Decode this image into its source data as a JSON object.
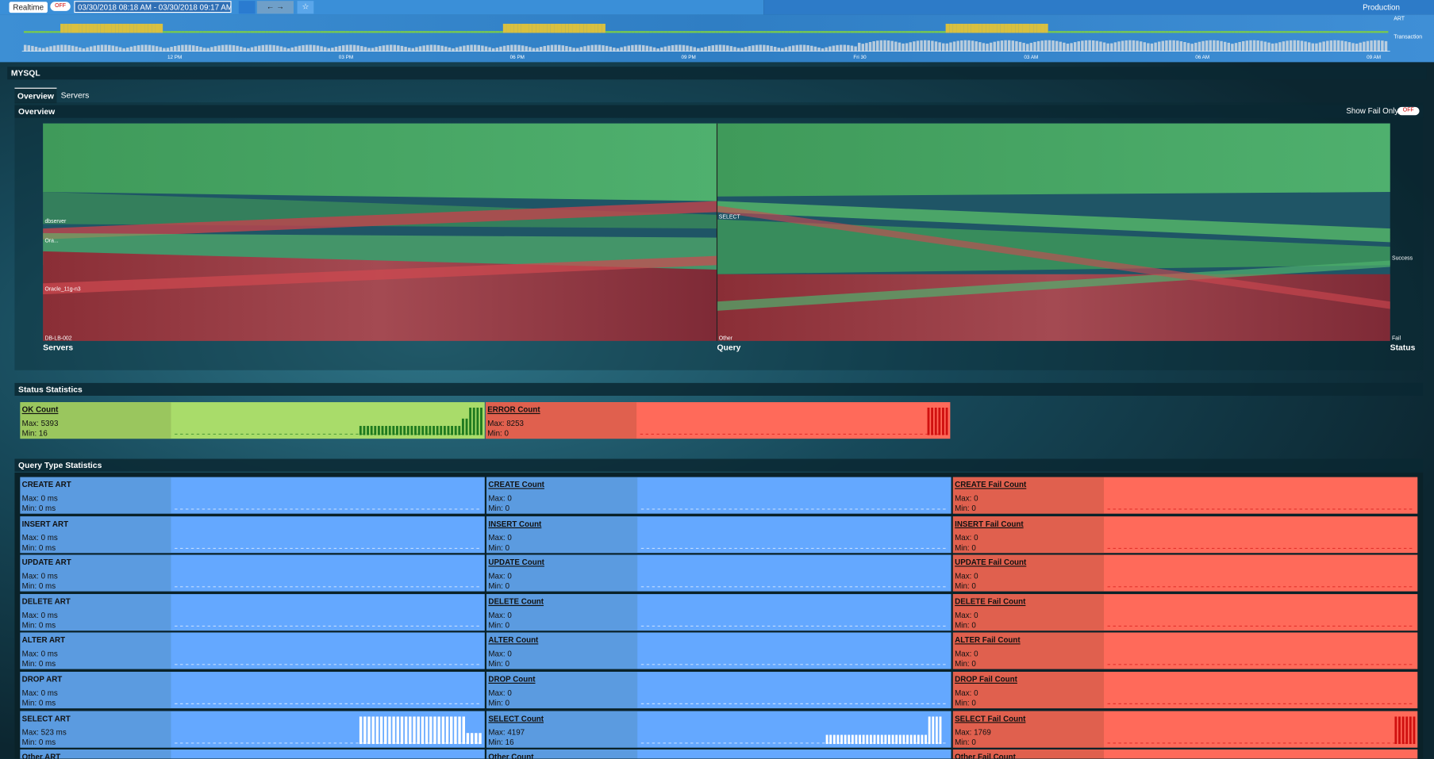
{
  "toolbar": {
    "realtime": "Realtime",
    "toggle": "OFF",
    "range": "03/30/2018 08:18 AM - 03/30/2018 09:17 AM",
    "environment": "Production"
  },
  "timeline": {
    "legend": [
      "ART",
      "Transaction"
    ],
    "labels": [
      "12 PM",
      "03 PM",
      "06 PM",
      "09 PM",
      "Fri 30",
      "03 AM",
      "06 AM",
      "09 AM"
    ]
  },
  "section": "MYSQL",
  "tabs": [
    "Overview",
    "Servers"
  ],
  "overview": {
    "title": "Overview",
    "show_fail_only": "Show Fail Only",
    "toggle": "OFF",
    "axes": [
      "Servers",
      "Query",
      "Status"
    ],
    "servers": [
      "dbserver",
      "Ora...",
      "Oracle_11g-n3",
      "DB-LB-002"
    ],
    "queries": [
      "SELECT",
      "Other"
    ],
    "statuses": [
      "Success",
      "Fail"
    ]
  },
  "status_statistics": {
    "title": "Status Statistics",
    "cards": [
      {
        "title": "OK Count",
        "max": "Max: 5393",
        "min": "Min: 16"
      },
      {
        "title": "ERROR Count",
        "max": "Max: 8253",
        "min": "Min: 0"
      }
    ]
  },
  "query_type_statistics": {
    "title": "Query Type Statistics",
    "rows": [
      [
        {
          "title": "CREATE ART",
          "max": "Max: 0 ms",
          "min": "Min: 0 ms"
        },
        {
          "title": "CREATE Count",
          "max": "Max: 0",
          "min": "Min: 0"
        },
        {
          "title": "CREATE Fail Count",
          "max": "Max: 0",
          "min": "Min: 0"
        }
      ],
      [
        {
          "title": "INSERT ART",
          "max": "Max: 0 ms",
          "min": "Min: 0 ms"
        },
        {
          "title": "INSERT Count",
          "max": "Max: 0",
          "min": "Min: 0"
        },
        {
          "title": "INSERT Fail Count",
          "max": "Max: 0",
          "min": "Min: 0"
        }
      ],
      [
        {
          "title": "UPDATE ART",
          "max": "Max: 0 ms",
          "min": "Min: 0 ms"
        },
        {
          "title": "UPDATE Count",
          "max": "Max: 0",
          "min": "Min: 0"
        },
        {
          "title": "UPDATE Fail Count",
          "max": "Max: 0",
          "min": "Min: 0"
        }
      ],
      [
        {
          "title": "DELETE ART",
          "max": "Max: 0 ms",
          "min": "Min: 0 ms"
        },
        {
          "title": "DELETE Count",
          "max": "Max: 0",
          "min": "Min: 0"
        },
        {
          "title": "DELETE Fail Count",
          "max": "Max: 0",
          "min": "Min: 0"
        }
      ],
      [
        {
          "title": "ALTER ART",
          "max": "Max: 0 ms",
          "min": "Min: 0 ms"
        },
        {
          "title": "ALTER Count",
          "max": "Max: 0",
          "min": "Min: 0"
        },
        {
          "title": "ALTER Fail Count",
          "max": "Max: 0",
          "min": "Min: 0"
        }
      ],
      [
        {
          "title": "DROP ART",
          "max": "Max: 0 ms",
          "min": "Min: 0 ms"
        },
        {
          "title": "DROP Count",
          "max": "Max: 0",
          "min": "Min: 0"
        },
        {
          "title": "DROP Fail Count",
          "max": "Max: 0",
          "min": "Min: 0"
        }
      ],
      [
        {
          "title": "SELECT ART",
          "max": "Max: 523 ms",
          "min": "Min: 0 ms"
        },
        {
          "title": "SELECT Count",
          "max": "Max: 4197",
          "min": "Min: 16"
        },
        {
          "title": "SELECT Fail Count",
          "max": "Max: 1769",
          "min": "Min: 0"
        }
      ],
      [
        {
          "title": "Other ART"
        },
        {
          "title": "Other Count"
        },
        {
          "title": "Other Fail Count"
        }
      ]
    ]
  }
}
